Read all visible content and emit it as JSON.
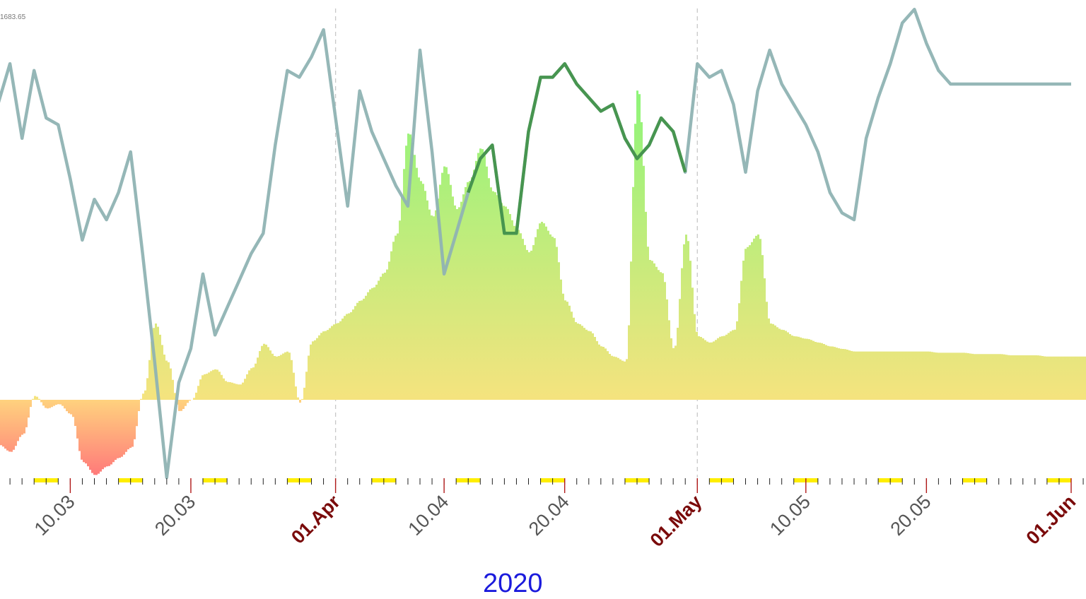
{
  "chart_data": {
    "type": "area",
    "title": "",
    "xlabel": "2020",
    "ylabel": "",
    "ymax_label": "1683.65",
    "x_range": [
      "2020-03-03",
      "2020-06-01"
    ],
    "grid": false,
    "month_dividers": [
      "2020-04-01",
      "2020-05-01"
    ],
    "tick_labels": [
      {
        "date": "2020-03-10",
        "label": "10.03",
        "kind": "day"
      },
      {
        "date": "2020-03-20",
        "label": "20.03",
        "kind": "day"
      },
      {
        "date": "2020-04-01",
        "label": "01.Apr",
        "kind": "month"
      },
      {
        "date": "2020-04-10",
        "label": "10.04",
        "kind": "day"
      },
      {
        "date": "2020-04-20",
        "label": "20.04",
        "kind": "day"
      },
      {
        "date": "2020-05-01",
        "label": "01.May",
        "kind": "month"
      },
      {
        "date": "2020-05-10",
        "label": "10.05",
        "kind": "day"
      },
      {
        "date": "2020-05-20",
        "label": "20.05",
        "kind": "day"
      },
      {
        "date": "2020-06-01",
        "label": "01.Jun",
        "kind": "month"
      }
    ],
    "colors": {
      "line": "#8fb3b3",
      "line_highlight": "#2d8a2d",
      "area_low": "#f5e37e",
      "area_high": "#8ef57a",
      "area_negative": "#ff7a7a",
      "weekend": "#ffee00",
      "tick": "#b11a1a",
      "year": "#1a1adc"
    },
    "area_series": {
      "name": "",
      "unit": "relative",
      "points": [
        [
          "2020-03-03",
          -0.27
        ],
        [
          "2020-03-04",
          -0.31
        ],
        [
          "2020-03-05",
          -0.36
        ],
        [
          "2020-03-06",
          -0.24
        ],
        [
          "2020-03-07",
          0.03
        ],
        [
          "2020-03-08",
          -0.06
        ],
        [
          "2020-03-09",
          -0.03
        ],
        [
          "2020-03-10",
          -0.1
        ],
        [
          "2020-03-11",
          -0.43
        ],
        [
          "2020-03-12",
          -0.52
        ],
        [
          "2020-03-13",
          -0.46
        ],
        [
          "2020-03-14",
          -0.4
        ],
        [
          "2020-03-15",
          -0.33
        ],
        [
          "2020-03-16",
          0.05
        ],
        [
          "2020-03-17",
          0.6
        ],
        [
          "2020-03-18",
          0.3
        ],
        [
          "2020-03-19",
          -0.08
        ],
        [
          "2020-03-20",
          0.0
        ],
        [
          "2020-03-21",
          0.2
        ],
        [
          "2020-03-22",
          0.24
        ],
        [
          "2020-03-23",
          0.14
        ],
        [
          "2020-03-24",
          0.12
        ],
        [
          "2020-03-25",
          0.25
        ],
        [
          "2020-03-26",
          0.44
        ],
        [
          "2020-03-27",
          0.34
        ],
        [
          "2020-03-28",
          0.38
        ],
        [
          "2020-03-29",
          -0.02
        ],
        [
          "2020-03-30",
          0.46
        ],
        [
          "2020-03-31",
          0.54
        ],
        [
          "2020-04-01",
          0.6
        ],
        [
          "2020-04-02",
          0.68
        ],
        [
          "2020-04-03",
          0.78
        ],
        [
          "2020-04-04",
          0.88
        ],
        [
          "2020-04-05",
          1.0
        ],
        [
          "2020-04-06",
          1.3
        ],
        [
          "2020-04-07",
          2.1
        ],
        [
          "2020-04-08",
          1.72
        ],
        [
          "2020-04-09",
          1.44
        ],
        [
          "2020-04-10",
          1.84
        ],
        [
          "2020-04-11",
          1.5
        ],
        [
          "2020-04-12",
          1.72
        ],
        [
          "2020-04-13",
          1.98
        ],
        [
          "2020-04-14",
          1.64
        ],
        [
          "2020-04-15",
          1.52
        ],
        [
          "2020-04-16",
          1.34
        ],
        [
          "2020-04-17",
          1.16
        ],
        [
          "2020-04-18",
          1.4
        ],
        [
          "2020-04-19",
          1.28
        ],
        [
          "2020-04-20",
          0.78
        ],
        [
          "2020-04-21",
          0.6
        ],
        [
          "2020-04-22",
          0.54
        ],
        [
          "2020-04-23",
          0.42
        ],
        [
          "2020-04-24",
          0.34
        ],
        [
          "2020-04-25",
          0.3
        ],
        [
          "2020-04-26",
          2.45
        ],
        [
          "2020-04-27",
          1.1
        ],
        [
          "2020-04-28",
          1.0
        ],
        [
          "2020-04-29",
          0.4
        ],
        [
          "2020-04-30",
          1.3
        ],
        [
          "2020-05-01",
          0.5
        ],
        [
          "2020-05-02",
          0.45
        ],
        [
          "2020-05-03",
          0.5
        ],
        [
          "2020-05-04",
          0.55
        ],
        [
          "2020-05-05",
          1.2
        ],
        [
          "2020-05-06",
          1.3
        ],
        [
          "2020-05-07",
          0.6
        ],
        [
          "2020-05-08",
          0.55
        ],
        [
          "2020-05-09",
          0.5
        ],
        [
          "2020-05-10",
          0.48
        ],
        [
          "2020-05-11",
          0.45
        ],
        [
          "2020-05-12",
          0.42
        ],
        [
          "2020-05-13",
          0.4
        ],
        [
          "2020-05-14",
          0.38
        ],
        [
          "2020-05-15",
          0.38
        ],
        [
          "2020-05-16",
          0.38
        ],
        [
          "2020-05-17",
          0.38
        ],
        [
          "2020-05-18",
          0.38
        ],
        [
          "2020-05-19",
          0.38
        ],
        [
          "2020-05-20",
          0.38
        ],
        [
          "2020-05-21",
          0.37
        ],
        [
          "2020-05-22",
          0.37
        ],
        [
          "2020-05-23",
          0.37
        ],
        [
          "2020-05-24",
          0.36
        ],
        [
          "2020-05-25",
          0.36
        ],
        [
          "2020-05-26",
          0.36
        ],
        [
          "2020-05-27",
          0.35
        ],
        [
          "2020-05-28",
          0.35
        ],
        [
          "2020-05-29",
          0.35
        ],
        [
          "2020-05-30",
          0.34
        ],
        [
          "2020-05-31",
          0.34
        ],
        [
          "2020-06-01",
          0.34
        ]
      ]
    },
    "line_series": {
      "name": "",
      "points": [
        [
          "2020-03-03",
          0.49
        ],
        [
          "2020-03-05",
          0.61
        ],
        [
          "2020-03-06",
          0.5
        ],
        [
          "2020-03-07",
          0.6
        ],
        [
          "2020-03-08",
          0.53
        ],
        [
          "2020-03-09",
          0.52
        ],
        [
          "2020-03-10",
          0.44
        ],
        [
          "2020-03-11",
          0.35
        ],
        [
          "2020-03-12",
          0.41
        ],
        [
          "2020-03-13",
          0.38
        ],
        [
          "2020-03-14",
          0.42
        ],
        [
          "2020-03-15",
          0.48
        ],
        [
          "2020-03-16",
          0.33
        ],
        [
          "2020-03-17",
          0.17
        ],
        [
          "2020-03-18",
          0.0
        ],
        [
          "2020-03-19",
          0.14
        ],
        [
          "2020-03-20",
          0.19
        ],
        [
          "2020-03-21",
          0.3
        ],
        [
          "2020-03-22",
          0.21
        ],
        [
          "2020-03-23",
          0.25
        ],
        [
          "2020-03-24",
          0.29
        ],
        [
          "2020-03-25",
          0.33
        ],
        [
          "2020-03-26",
          0.36
        ],
        [
          "2020-03-27",
          0.49
        ],
        [
          "2020-03-28",
          0.6
        ],
        [
          "2020-03-29",
          0.59
        ],
        [
          "2020-03-30",
          0.62
        ],
        [
          "2020-03-31",
          0.66
        ],
        [
          "2020-04-01",
          0.53
        ],
        [
          "2020-04-02",
          0.4
        ],
        [
          "2020-04-03",
          0.57
        ],
        [
          "2020-04-04",
          0.51
        ],
        [
          "2020-04-05",
          0.47
        ],
        [
          "2020-04-06",
          0.43
        ],
        [
          "2020-04-07",
          0.4
        ],
        [
          "2020-04-08",
          0.63
        ],
        [
          "2020-04-09",
          0.48
        ],
        [
          "2020-04-10",
          0.3
        ],
        [
          "2020-04-11",
          0.36
        ],
        [
          "2020-04-12",
          0.42
        ],
        [
          "2020-04-13",
          0.47
        ],
        [
          "2020-04-14",
          0.49
        ],
        [
          "2020-04-15",
          0.36
        ],
        [
          "2020-04-16",
          0.36
        ],
        [
          "2020-04-17",
          0.51
        ],
        [
          "2020-04-18",
          0.59
        ],
        [
          "2020-04-19",
          0.59
        ],
        [
          "2020-04-20",
          0.61
        ],
        [
          "2020-04-21",
          0.58
        ],
        [
          "2020-04-22",
          0.56
        ],
        [
          "2020-04-23",
          0.54
        ],
        [
          "2020-04-24",
          0.55
        ],
        [
          "2020-04-25",
          0.5
        ],
        [
          "2020-04-26",
          0.47
        ],
        [
          "2020-04-27",
          0.49
        ],
        [
          "2020-04-28",
          0.53
        ],
        [
          "2020-04-29",
          0.51
        ],
        [
          "2020-04-30",
          0.45
        ],
        [
          "2020-05-01",
          0.61
        ],
        [
          "2020-05-02",
          0.59
        ],
        [
          "2020-05-03",
          0.6
        ],
        [
          "2020-05-04",
          0.55
        ],
        [
          "2020-05-05",
          0.45
        ],
        [
          "2020-05-06",
          0.57
        ],
        [
          "2020-05-07",
          0.63
        ],
        [
          "2020-05-08",
          0.58
        ],
        [
          "2020-05-09",
          0.55
        ],
        [
          "2020-05-10",
          0.52
        ],
        [
          "2020-05-11",
          0.48
        ],
        [
          "2020-05-12",
          0.42
        ],
        [
          "2020-05-13",
          0.39
        ],
        [
          "2020-05-14",
          0.38
        ],
        [
          "2020-05-15",
          0.5
        ],
        [
          "2020-05-16",
          0.56
        ],
        [
          "2020-05-17",
          0.61
        ],
        [
          "2020-05-18",
          0.67
        ],
        [
          "2020-05-19",
          0.69
        ],
        [
          "2020-05-20",
          0.64
        ],
        [
          "2020-05-21",
          0.6
        ],
        [
          "2020-05-22",
          0.58
        ],
        [
          "2020-05-23",
          0.58
        ],
        [
          "2020-05-24",
          0.58
        ],
        [
          "2020-05-25",
          0.58
        ],
        [
          "2020-05-26",
          0.58
        ],
        [
          "2020-05-27",
          0.58
        ],
        [
          "2020-05-28",
          0.58
        ],
        [
          "2020-05-29",
          0.58
        ],
        [
          "2020-05-30",
          0.58
        ],
        [
          "2020-05-31",
          0.58
        ],
        [
          "2020-06-01",
          0.58
        ]
      ],
      "highlight_range": [
        "2020-04-12",
        "2020-04-30"
      ]
    }
  }
}
